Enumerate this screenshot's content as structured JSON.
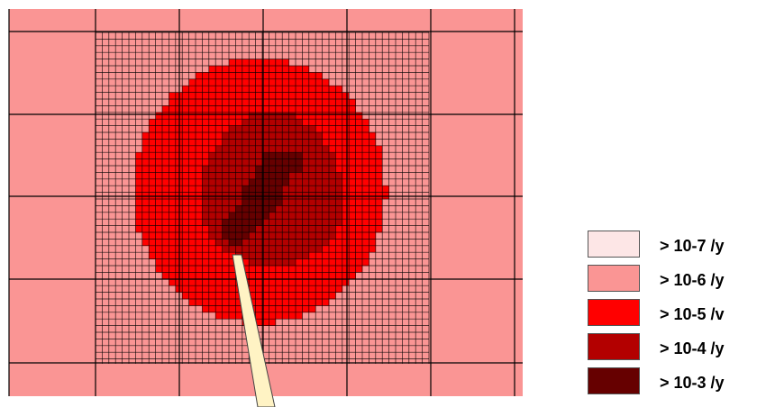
{
  "legend": {
    "items": [
      {
        "label": "> 10-7 /y",
        "color": "#fde6e6"
      },
      {
        "label": "> 10-6 /y",
        "color": "#fa9594"
      },
      {
        "label": "> 10-5 /v",
        "color": "#ff0000"
      },
      {
        "label": "> 10-4 /y",
        "color": "#b30000"
      },
      {
        "label": "> 10-3 /y",
        "color": "#660000"
      }
    ]
  },
  "map": {
    "background_color": "#fa9594",
    "coarse_grid": "on",
    "fine_grid": "on",
    "grid_line_color": "#000000",
    "pointer_color": "#fff3c4"
  }
}
